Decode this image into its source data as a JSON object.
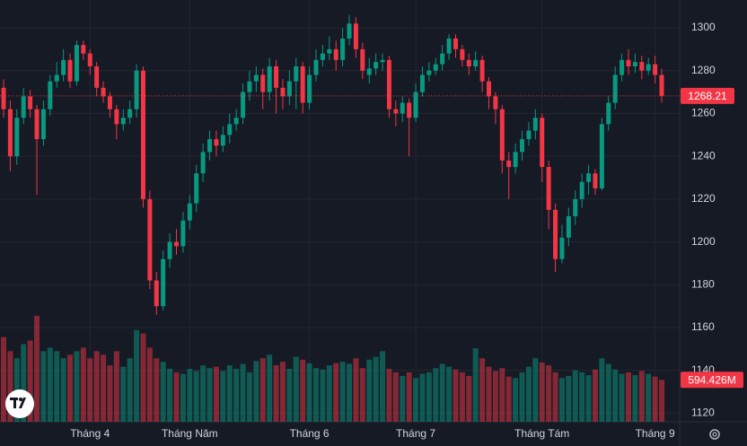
{
  "chart_data": {
    "type": "candlestick",
    "up_color": "#089981",
    "down_color": "#f23645",
    "grid": true,
    "ylim": [
      1116,
      1313
    ],
    "yticks": [
      1120,
      1140,
      1160,
      1180,
      1200,
      1220,
      1240,
      1260,
      1280,
      1300
    ],
    "xlim": [
      -0.54,
      101.7
    ],
    "xticks": [
      {
        "value": 13,
        "label": "Tháng 4"
      },
      {
        "value": 28,
        "label": "Tháng Năm"
      },
      {
        "value": 46,
        "label": "Tháng 6"
      },
      {
        "value": 62,
        "label": "Tháng 7"
      },
      {
        "value": 81,
        "label": "Tháng Tám"
      },
      {
        "value": 98,
        "label": "Tháng 9"
      }
    ],
    "candles": [
      [
        1272,
        1276,
        1258,
        1262
      ],
      [
        1262,
        1266,
        1233,
        1240
      ],
      [
        1240,
        1262,
        1236,
        1258
      ],
      [
        1258,
        1272,
        1255,
        1268
      ],
      [
        1268,
        1271,
        1258,
        1262
      ],
      [
        1262,
        1264,
        1222,
        1248
      ],
      [
        1248,
        1266,
        1245,
        1262
      ],
      [
        1262,
        1278,
        1259,
        1275
      ],
      [
        1275,
        1284,
        1272,
        1278
      ],
      [
        1278,
        1290,
        1275,
        1285
      ],
      [
        1285,
        1288,
        1272,
        1275
      ],
      [
        1275,
        1294,
        1273,
        1292
      ],
      [
        1292,
        1294,
        1285,
        1288
      ],
      [
        1288,
        1290,
        1278,
        1282
      ],
      [
        1282,
        1284,
        1268,
        1272
      ],
      [
        1272,
        1275,
        1265,
        1268
      ],
      [
        1268,
        1270,
        1258,
        1262
      ],
      [
        1262,
        1264,
        1248,
        1255
      ],
      [
        1255,
        1262,
        1252,
        1258
      ],
      [
        1258,
        1266,
        1255,
        1262
      ],
      [
        1262,
        1283,
        1258,
        1280
      ],
      [
        1280,
        1282,
        1216,
        1220
      ],
      [
        1220,
        1224,
        1178,
        1182
      ],
      [
        1182,
        1186,
        1166,
        1170
      ],
      [
        1170,
        1196,
        1168,
        1192
      ],
      [
        1192,
        1204,
        1188,
        1200
      ],
      [
        1200,
        1206,
        1194,
        1198
      ],
      [
        1198,
        1214,
        1195,
        1210
      ],
      [
        1210,
        1222,
        1206,
        1218
      ],
      [
        1218,
        1236,
        1214,
        1232
      ],
      [
        1232,
        1246,
        1228,
        1242
      ],
      [
        1242,
        1252,
        1238,
        1248
      ],
      [
        1248,
        1252,
        1240,
        1245
      ],
      [
        1245,
        1254,
        1242,
        1250
      ],
      [
        1250,
        1260,
        1246,
        1255
      ],
      [
        1255,
        1262,
        1252,
        1258
      ],
      [
        1258,
        1274,
        1255,
        1270
      ],
      [
        1270,
        1280,
        1266,
        1275
      ],
      [
        1275,
        1282,
        1270,
        1278
      ],
      [
        1278,
        1281,
        1262,
        1270
      ],
      [
        1270,
        1286,
        1266,
        1282
      ],
      [
        1282,
        1285,
        1260,
        1272
      ],
      [
        1272,
        1276,
        1262,
        1268
      ],
      [
        1268,
        1280,
        1264,
        1275
      ],
      [
        1275,
        1286,
        1262,
        1282
      ],
      [
        1282,
        1284,
        1260,
        1265
      ],
      [
        1265,
        1282,
        1262,
        1278
      ],
      [
        1278,
        1290,
        1275,
        1285
      ],
      [
        1285,
        1292,
        1282,
        1288
      ],
      [
        1288,
        1296,
        1285,
        1290
      ],
      [
        1290,
        1294,
        1280,
        1285
      ],
      [
        1285,
        1300,
        1282,
        1295
      ],
      [
        1295,
        1306,
        1292,
        1302
      ],
      [
        1302,
        1305,
        1286,
        1290
      ],
      [
        1290,
        1293,
        1276,
        1280
      ],
      [
        1278,
        1286,
        1274,
        1281
      ],
      [
        1281,
        1288,
        1278,
        1284
      ],
      [
        1284,
        1288,
        1280,
        1285
      ],
      [
        1285,
        1287,
        1258,
        1262
      ],
      [
        1262,
        1266,
        1254,
        1260
      ],
      [
        1260,
        1268,
        1256,
        1265
      ],
      [
        1265,
        1267,
        1240,
        1258
      ],
      [
        1258,
        1274,
        1256,
        1270
      ],
      [
        1270,
        1282,
        1268,
        1278
      ],
      [
        1278,
        1284,
        1275,
        1280
      ],
      [
        1280,
        1286,
        1278,
        1283
      ],
      [
        1283,
        1292,
        1280,
        1288
      ],
      [
        1288,
        1297,
        1285,
        1295
      ],
      [
        1295,
        1297,
        1286,
        1290
      ],
      [
        1290,
        1292,
        1282,
        1285
      ],
      [
        1285,
        1288,
        1278,
        1282
      ],
      [
        1282,
        1289,
        1280,
        1285
      ],
      [
        1285,
        1287,
        1270,
        1275
      ],
      [
        1275,
        1277,
        1262,
        1268
      ],
      [
        1268,
        1270,
        1255,
        1262
      ],
      [
        1262,
        1264,
        1232,
        1238
      ],
      [
        1238,
        1242,
        1220,
        1235
      ],
      [
        1235,
        1246,
        1232,
        1242
      ],
      [
        1242,
        1252,
        1238,
        1248
      ],
      [
        1248,
        1256,
        1245,
        1252
      ],
      [
        1252,
        1262,
        1248,
        1258
      ],
      [
        1258,
        1260,
        1228,
        1235
      ],
      [
        1235,
        1238,
        1206,
        1215
      ],
      [
        1215,
        1218,
        1186,
        1192
      ],
      [
        1192,
        1208,
        1190,
        1202
      ],
      [
        1202,
        1216,
        1198,
        1212
      ],
      [
        1212,
        1224,
        1208,
        1220
      ],
      [
        1220,
        1232,
        1216,
        1228
      ],
      [
        1228,
        1236,
        1222,
        1232
      ],
      [
        1232,
        1234,
        1222,
        1225
      ],
      [
        1225,
        1258,
        1224,
        1255
      ],
      [
        1255,
        1268,
        1252,
        1265
      ],
      [
        1265,
        1282,
        1262,
        1278
      ],
      [
        1278,
        1288,
        1275,
        1285
      ],
      [
        1285,
        1290,
        1278,
        1282
      ],
      [
        1282,
        1288,
        1279,
        1284
      ],
      [
        1284,
        1287,
        1276,
        1280
      ],
      [
        1280,
        1286,
        1278,
        1283
      ],
      [
        1283,
        1287,
        1274,
        1278
      ],
      [
        1278,
        1281,
        1265,
        1268.21
      ]
    ],
    "volumes": [
      1200,
      1000,
      900,
      1100,
      1150,
      1500,
      1000,
      1050,
      1000,
      900,
      950,
      1000,
      1050,
      900,
      1000,
      950,
      800,
      1000,
      780,
      900,
      1300,
      1250,
      1050,
      900,
      850,
      750,
      700,
      680,
      750,
      720,
      800,
      760,
      780,
      720,
      800,
      750,
      820,
      700,
      860,
      900,
      950,
      800,
      850,
      750,
      920,
      880,
      830,
      760,
      740,
      800,
      830,
      850,
      820,
      900,
      760,
      880,
      920,
      1000,
      750,
      700,
      650,
      700,
      620,
      680,
      700,
      760,
      820,
      780,
      740,
      700,
      650,
      1040,
      900,
      780,
      720,
      760,
      640,
      620,
      700,
      780,
      900,
      840,
      800,
      700,
      620,
      650,
      730,
      700,
      660,
      740,
      900,
      820,
      740,
      680,
      700,
      660,
      720,
      680,
      640,
      594.426
    ],
    "last_volume_label": "594.426M"
  }
}
